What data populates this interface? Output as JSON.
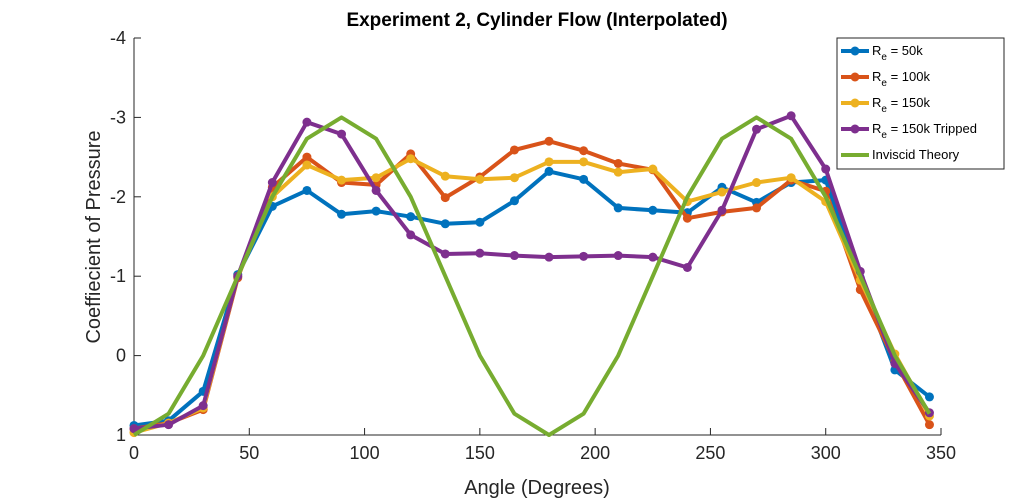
{
  "chart_data": {
    "type": "line",
    "title": "Experiment 2, Cylinder Flow (Interpolated)",
    "xlabel": "Angle (Degrees)",
    "ylabel": "Coeffiecient of Pressure",
    "xlim": [
      0,
      350
    ],
    "ylim": [
      1,
      -4
    ],
    "y_reversed": true,
    "xticks": [
      0,
      50,
      100,
      150,
      200,
      250,
      300,
      350
    ],
    "xtick_labels": [
      "0",
      "50",
      "100",
      "150",
      "200",
      "250",
      "300",
      "350"
    ],
    "yticks": [
      1,
      0,
      -1,
      -2,
      -3,
      -4
    ],
    "ytick_labels": [
      "1",
      "0",
      "-1",
      "-2",
      "-3",
      "-4"
    ],
    "legend_position": "top-right",
    "series": [
      {
        "name": "Re = 50k",
        "legend_main": "R",
        "legend_sub": "e",
        "legend_rest": " = 50k",
        "color": "#0072BD",
        "markers": true,
        "x": [
          0,
          15,
          30,
          45,
          60,
          75,
          90,
          105,
          120,
          135,
          150,
          165,
          180,
          195,
          210,
          225,
          240,
          255,
          270,
          285,
          300,
          315,
          330,
          345
        ],
        "y": [
          0.88,
          0.82,
          0.45,
          -1.02,
          -1.88,
          -2.08,
          -1.78,
          -1.82,
          -1.75,
          -1.66,
          -1.68,
          -1.95,
          -2.32,
          -2.22,
          -1.86,
          -1.83,
          -1.8,
          -2.12,
          -1.93,
          -2.18,
          -2.21,
          -0.98,
          0.18,
          0.52
        ]
      },
      {
        "name": "Re = 100k",
        "legend_main": "R",
        "legend_sub": "e",
        "legend_rest": " = 100k",
        "color": "#D95319",
        "markers": true,
        "x": [
          0,
          15,
          30,
          45,
          60,
          75,
          90,
          105,
          120,
          135,
          150,
          165,
          180,
          195,
          210,
          225,
          240,
          255,
          270,
          285,
          300,
          315,
          330,
          345
        ],
        "y": [
          0.92,
          0.85,
          0.68,
          -0.98,
          -2.12,
          -2.5,
          -2.18,
          -2.15,
          -2.54,
          -1.99,
          -2.25,
          -2.59,
          -2.7,
          -2.58,
          -2.42,
          -2.34,
          -1.73,
          -1.81,
          -1.86,
          -2.21,
          -2.07,
          -0.83,
          0.07,
          0.87
        ]
      },
      {
        "name": "Re = 150k",
        "legend_main": "R",
        "legend_sub": "e",
        "legend_rest": " = 150k",
        "color": "#EDB120",
        "markers": true,
        "x": [
          0,
          15,
          30,
          45,
          60,
          75,
          90,
          105,
          120,
          135,
          150,
          165,
          180,
          195,
          210,
          225,
          240,
          255,
          270,
          285,
          300,
          315,
          330,
          345
        ],
        "y": [
          0.97,
          0.85,
          0.66,
          -1.0,
          -2.0,
          -2.4,
          -2.21,
          -2.24,
          -2.48,
          -2.26,
          -2.22,
          -2.24,
          -2.44,
          -2.44,
          -2.31,
          -2.35,
          -1.94,
          -2.06,
          -2.18,
          -2.24,
          -1.94,
          -0.95,
          -0.02,
          0.76
        ]
      },
      {
        "name": "Re = 150k Tripped",
        "legend_main": "R",
        "legend_sub": "e",
        "legend_rest": " = 150k Tripped",
        "color": "#7E2F8E",
        "markers": true,
        "x": [
          0,
          15,
          30,
          45,
          60,
          75,
          90,
          105,
          120,
          135,
          150,
          165,
          180,
          195,
          210,
          225,
          240,
          255,
          270,
          285,
          300,
          315,
          330,
          345
        ],
        "y": [
          0.92,
          0.87,
          0.63,
          -1.0,
          -2.18,
          -2.94,
          -2.79,
          -2.08,
          -1.52,
          -1.28,
          -1.29,
          -1.26,
          -1.24,
          -1.25,
          -1.26,
          -1.24,
          -1.11,
          -1.83,
          -2.85,
          -3.02,
          -2.35,
          -1.06,
          0.1,
          0.72
        ]
      },
      {
        "name": "Inviscid Theory",
        "legend_main": "Inviscid Theory",
        "legend_sub": "",
        "legend_rest": "",
        "color": "#77AC30",
        "markers": false,
        "x": [
          0,
          15,
          30,
          45,
          60,
          75,
          90,
          105,
          120,
          135,
          150,
          165,
          180,
          195,
          210,
          225,
          240,
          255,
          270,
          285,
          300,
          315,
          330,
          345
        ],
        "y": [
          1.0,
          0.732,
          0.0,
          -1.0,
          -2.0,
          -2.732,
          -3.0,
          -2.732,
          -2.0,
          -1.0,
          0.0,
          0.732,
          1.0,
          0.732,
          0.0,
          -1.0,
          -2.0,
          -2.732,
          -3.0,
          -2.732,
          -2.0,
          -1.0,
          0.0,
          0.732
        ]
      }
    ]
  }
}
